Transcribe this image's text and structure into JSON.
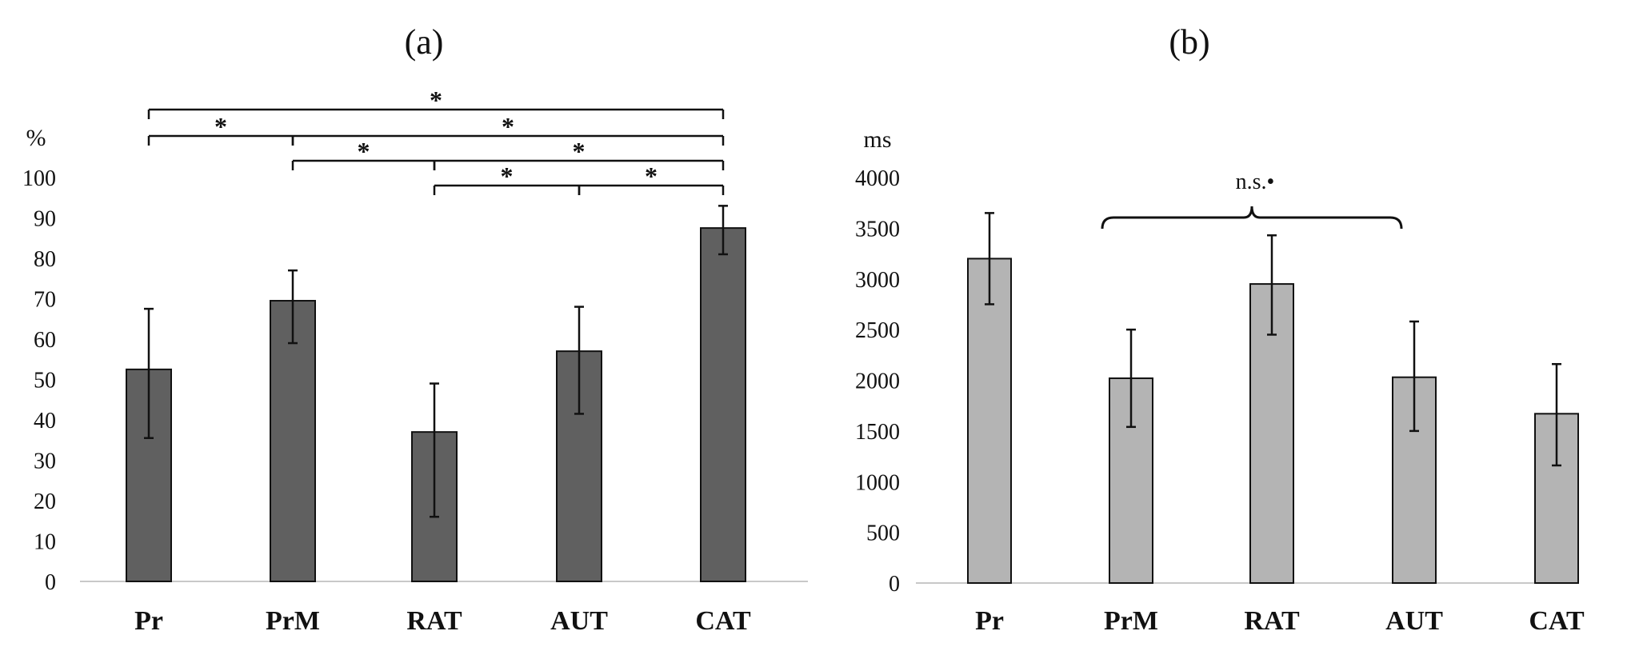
{
  "chart_data": [
    {
      "type": "bar",
      "panel_label": "(a)",
      "ylabel": "%",
      "ylim": [
        0,
        100
      ],
      "yticks": [
        0,
        10,
        20,
        30,
        40,
        50,
        60,
        70,
        80,
        90,
        100
      ],
      "categories": [
        "Pr",
        "PrM",
        "RAT",
        "AUT",
        "CAT"
      ],
      "values": [
        52.5,
        69.5,
        37,
        57,
        87.5
      ],
      "error_low": [
        35.5,
        59,
        16,
        41.5,
        81
      ],
      "error_high": [
        67.5,
        77,
        49,
        68,
        93
      ],
      "bar_color": "#606060",
      "significance": [
        {
          "from": 0,
          "to": 4,
          "label": "*"
        },
        {
          "from": 0,
          "to": 1,
          "label": "*"
        },
        {
          "from": 1,
          "to": 4,
          "label": "*"
        },
        {
          "from": 1,
          "to": 2,
          "label": "*"
        },
        {
          "from": 2,
          "to": 4,
          "label": "*"
        },
        {
          "from": 2,
          "to": 3,
          "label": "*"
        },
        {
          "from": 3,
          "to": 4,
          "label": "*"
        }
      ]
    },
    {
      "type": "bar",
      "panel_label": "(b)",
      "ylabel": "ms",
      "ylim": [
        0,
        4000
      ],
      "yticks": [
        0,
        500,
        1000,
        1500,
        2000,
        2500,
        3000,
        3500,
        4000
      ],
      "categories": [
        "Pr",
        "PrM",
        "RAT",
        "AUT",
        "CAT"
      ],
      "values": [
        3200,
        2020,
        2950,
        2030,
        1670
      ],
      "error_low": [
        2750,
        1540,
        2450,
        1500,
        1160
      ],
      "error_high": [
        3650,
        2500,
        3430,
        2580,
        2160
      ],
      "bar_color": "#b4b4b4",
      "annotation": {
        "from": 1,
        "to": 3,
        "label": "n.s.•"
      }
    }
  ]
}
